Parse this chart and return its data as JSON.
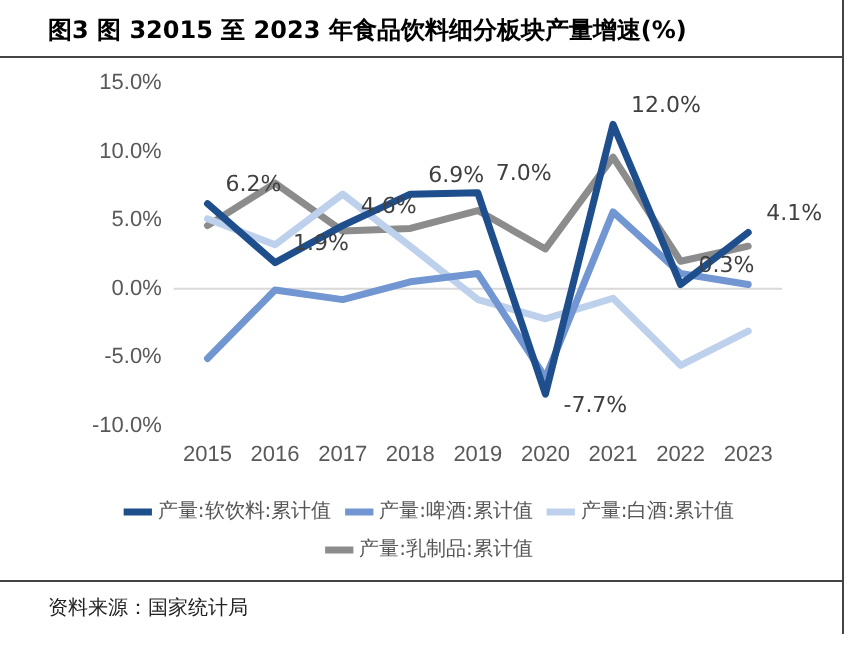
{
  "chart_data": {
    "type": "line",
    "title": "图3  图 32015 至 2023 年食品饮料细分板块产量增速(%)",
    "annotations": [
      "资料来源：国家统计局"
    ],
    "categories": [
      "2015",
      "2016",
      "2017",
      "2018",
      "2019",
      "2020",
      "2021",
      "2022",
      "2023"
    ],
    "series": [
      {
        "name": "产量:软饮料:累计值",
        "color": "#1f4e8c",
        "values": [
          6.2,
          1.9,
          4.6,
          6.9,
          7.0,
          -7.7,
          12.0,
          0.3,
          4.1
        ],
        "value_labels": [
          "6.2%",
          "1.9%",
          "4.6%",
          "6.9%",
          "7.0%",
          "-7.7%",
          "12.0%",
          "0.3%",
          "4.1%"
        ]
      },
      {
        "name": "产量:啤酒:累计值",
        "color": "#7296d2",
        "values": [
          -5.1,
          -0.1,
          -0.8,
          0.5,
          1.1,
          -6.5,
          5.6,
          1.1,
          0.3
        ]
      },
      {
        "name": "产量:白酒:累计值",
        "color": "#bdd0ec",
        "values": [
          5.1,
          3.2,
          6.9,
          3.1,
          -0.8,
          -2.2,
          -0.7,
          -5.6,
          -3.1
        ]
      },
      {
        "name": "产量:乳制品:累计值",
        "color": "#8c8c8c",
        "values": [
          4.6,
          7.7,
          4.2,
          4.4,
          5.7,
          2.9,
          9.6,
          2.0,
          3.1
        ]
      }
    ],
    "ylim": [
      -10,
      15
    ],
    "yticks": [
      {
        "value": -10,
        "label": "-10.0%"
      },
      {
        "value": -5,
        "label": "-5.0%"
      },
      {
        "value": 0,
        "label": "0.0%"
      },
      {
        "value": 5,
        "label": "5.0%"
      },
      {
        "value": 10,
        "label": "10.0%"
      },
      {
        "value": 15,
        "label": "15.0%"
      }
    ],
    "ref_lines": [
      {
        "axis": "y",
        "value": 0,
        "color": "#d9d9d9"
      }
    ],
    "grid": false,
    "legend": "bottom",
    "marker": "none",
    "line_style": "solid"
  }
}
